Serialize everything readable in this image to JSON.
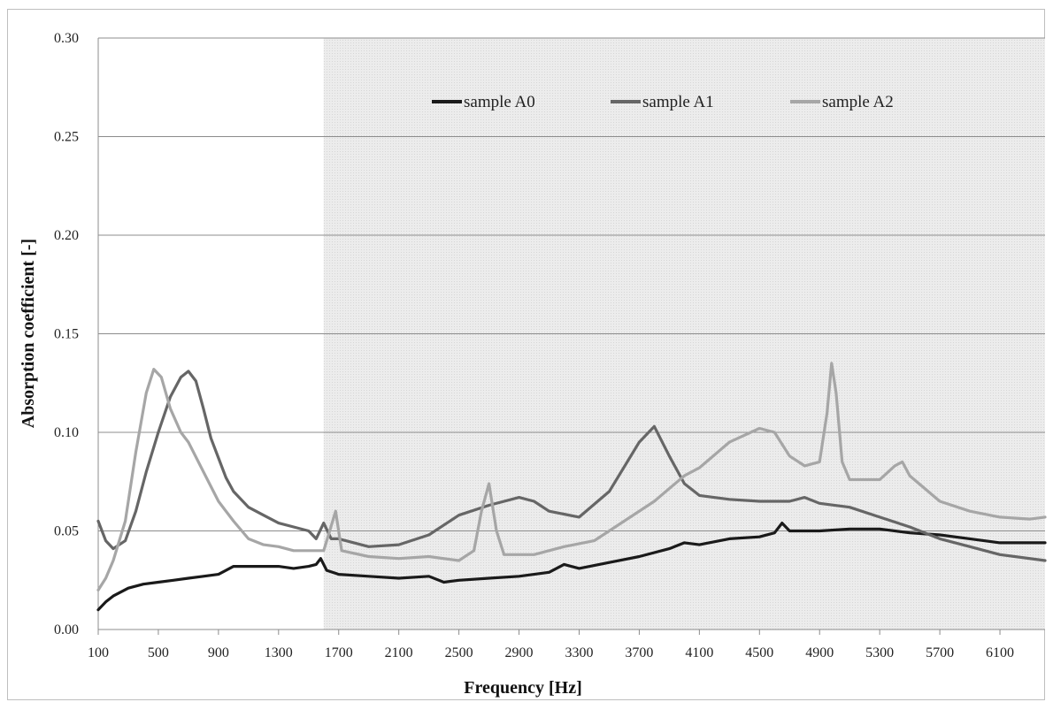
{
  "chart_data": {
    "type": "line",
    "title": "",
    "xlabel": "Frequency [Hz]",
    "ylabel": "Absorption coefficient [-]",
    "xlim": [
      100,
      6400
    ],
    "ylim": [
      0.0,
      0.3
    ],
    "x_ticks": [
      100,
      500,
      900,
      1300,
      1700,
      2100,
      2500,
      2900,
      3300,
      3700,
      4100,
      4500,
      4900,
      5300,
      5700,
      6100
    ],
    "y_ticks": [
      "0.00",
      "0.05",
      "0.10",
      "0.15",
      "0.20",
      "0.25",
      "0.30"
    ],
    "grid": "horizontal",
    "shaded_region_x": [
      1600,
      6400
    ],
    "legend_position": "top",
    "series": [
      {
        "name": "sample A0",
        "color": "#1a1a1a",
        "points": [
          [
            100,
            0.01
          ],
          [
            150,
            0.014
          ],
          [
            200,
            0.017
          ],
          [
            300,
            0.021
          ],
          [
            400,
            0.023
          ],
          [
            500,
            0.024
          ],
          [
            600,
            0.025
          ],
          [
            700,
            0.026
          ],
          [
            800,
            0.027
          ],
          [
            900,
            0.028
          ],
          [
            1000,
            0.032
          ],
          [
            1100,
            0.032
          ],
          [
            1200,
            0.032
          ],
          [
            1300,
            0.032
          ],
          [
            1400,
            0.031
          ],
          [
            1500,
            0.032
          ],
          [
            1550,
            0.033
          ],
          [
            1580,
            0.036
          ],
          [
            1620,
            0.03
          ],
          [
            1700,
            0.028
          ],
          [
            1900,
            0.027
          ],
          [
            2100,
            0.026
          ],
          [
            2300,
            0.027
          ],
          [
            2400,
            0.024
          ],
          [
            2500,
            0.025
          ],
          [
            2700,
            0.026
          ],
          [
            2900,
            0.027
          ],
          [
            3100,
            0.029
          ],
          [
            3200,
            0.033
          ],
          [
            3300,
            0.031
          ],
          [
            3500,
            0.034
          ],
          [
            3700,
            0.037
          ],
          [
            3900,
            0.041
          ],
          [
            4000,
            0.044
          ],
          [
            4100,
            0.043
          ],
          [
            4300,
            0.046
          ],
          [
            4500,
            0.047
          ],
          [
            4600,
            0.049
          ],
          [
            4650,
            0.054
          ],
          [
            4700,
            0.05
          ],
          [
            4900,
            0.05
          ],
          [
            5100,
            0.051
          ],
          [
            5300,
            0.051
          ],
          [
            5500,
            0.049
          ],
          [
            5700,
            0.048
          ],
          [
            5900,
            0.046
          ],
          [
            6100,
            0.044
          ],
          [
            6400,
            0.044
          ]
        ]
      },
      {
        "name": "sample A1",
        "color": "#666666",
        "points": [
          [
            100,
            0.055
          ],
          [
            150,
            0.045
          ],
          [
            200,
            0.041
          ],
          [
            280,
            0.045
          ],
          [
            350,
            0.06
          ],
          [
            420,
            0.08
          ],
          [
            500,
            0.1
          ],
          [
            580,
            0.118
          ],
          [
            650,
            0.128
          ],
          [
            700,
            0.131
          ],
          [
            750,
            0.126
          ],
          [
            800,
            0.112
          ],
          [
            850,
            0.097
          ],
          [
            900,
            0.087
          ],
          [
            950,
            0.077
          ],
          [
            1000,
            0.07
          ],
          [
            1100,
            0.062
          ],
          [
            1200,
            0.058
          ],
          [
            1300,
            0.054
          ],
          [
            1400,
            0.052
          ],
          [
            1500,
            0.05
          ],
          [
            1550,
            0.046
          ],
          [
            1600,
            0.054
          ],
          [
            1650,
            0.046
          ],
          [
            1700,
            0.046
          ],
          [
            1900,
            0.042
          ],
          [
            2100,
            0.043
          ],
          [
            2300,
            0.048
          ],
          [
            2500,
            0.058
          ],
          [
            2700,
            0.063
          ],
          [
            2900,
            0.067
          ],
          [
            3000,
            0.065
          ],
          [
            3100,
            0.06
          ],
          [
            3300,
            0.057
          ],
          [
            3500,
            0.07
          ],
          [
            3700,
            0.095
          ],
          [
            3800,
            0.103
          ],
          [
            3900,
            0.088
          ],
          [
            4000,
            0.074
          ],
          [
            4100,
            0.068
          ],
          [
            4300,
            0.066
          ],
          [
            4500,
            0.065
          ],
          [
            4700,
            0.065
          ],
          [
            4800,
            0.067
          ],
          [
            4900,
            0.064
          ],
          [
            5100,
            0.062
          ],
          [
            5300,
            0.057
          ],
          [
            5500,
            0.052
          ],
          [
            5700,
            0.046
          ],
          [
            5900,
            0.042
          ],
          [
            6100,
            0.038
          ],
          [
            6400,
            0.035
          ]
        ]
      },
      {
        "name": "sample A2",
        "color": "#a6a6a6",
        "points": [
          [
            100,
            0.02
          ],
          [
            150,
            0.026
          ],
          [
            200,
            0.035
          ],
          [
            280,
            0.055
          ],
          [
            350,
            0.09
          ],
          [
            420,
            0.12
          ],
          [
            470,
            0.132
          ],
          [
            520,
            0.128
          ],
          [
            580,
            0.112
          ],
          [
            650,
            0.1
          ],
          [
            700,
            0.095
          ],
          [
            800,
            0.08
          ],
          [
            900,
            0.065
          ],
          [
            1000,
            0.055
          ],
          [
            1100,
            0.046
          ],
          [
            1200,
            0.043
          ],
          [
            1300,
            0.042
          ],
          [
            1400,
            0.04
          ],
          [
            1500,
            0.04
          ],
          [
            1600,
            0.04
          ],
          [
            1640,
            0.05
          ],
          [
            1680,
            0.06
          ],
          [
            1720,
            0.04
          ],
          [
            1900,
            0.037
          ],
          [
            2100,
            0.036
          ],
          [
            2300,
            0.037
          ],
          [
            2500,
            0.035
          ],
          [
            2600,
            0.04
          ],
          [
            2650,
            0.06
          ],
          [
            2700,
            0.074
          ],
          [
            2750,
            0.05
          ],
          [
            2800,
            0.038
          ],
          [
            3000,
            0.038
          ],
          [
            3200,
            0.042
          ],
          [
            3400,
            0.045
          ],
          [
            3600,
            0.055
          ],
          [
            3800,
            0.065
          ],
          [
            4000,
            0.078
          ],
          [
            4100,
            0.082
          ],
          [
            4300,
            0.095
          ],
          [
            4500,
            0.102
          ],
          [
            4600,
            0.1
          ],
          [
            4700,
            0.088
          ],
          [
            4800,
            0.083
          ],
          [
            4900,
            0.085
          ],
          [
            4950,
            0.11
          ],
          [
            4980,
            0.135
          ],
          [
            5010,
            0.12
          ],
          [
            5050,
            0.085
          ],
          [
            5100,
            0.076
          ],
          [
            5300,
            0.076
          ],
          [
            5400,
            0.083
          ],
          [
            5450,
            0.085
          ],
          [
            5500,
            0.078
          ],
          [
            5700,
            0.065
          ],
          [
            5900,
            0.06
          ],
          [
            6100,
            0.057
          ],
          [
            6300,
            0.056
          ],
          [
            6400,
            0.057
          ]
        ]
      }
    ]
  }
}
